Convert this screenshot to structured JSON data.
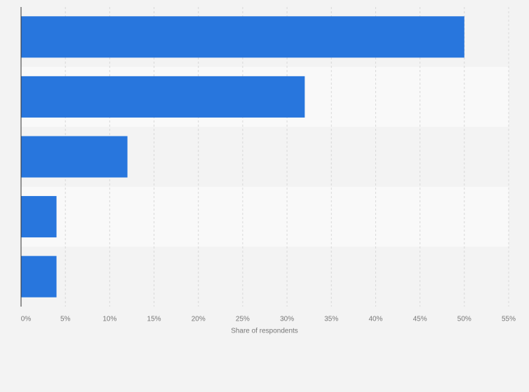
{
  "chart_data": {
    "type": "barh",
    "categories": [
      null,
      null,
      null,
      null,
      null
    ],
    "values": [
      50,
      32,
      12,
      4,
      4
    ],
    "color": "#2876dd",
    "x_label": "Share of respondents",
    "xlim": [
      0,
      55
    ],
    "xticks": [
      {
        "value": 0,
        "label": "0%"
      },
      {
        "value": 5,
        "label": "5%"
      },
      {
        "value": 10,
        "label": "10%"
      },
      {
        "value": 15,
        "label": "15%"
      },
      {
        "value": 20,
        "label": "20%"
      },
      {
        "value": 25,
        "label": "25%"
      },
      {
        "value": 30,
        "label": "30%"
      },
      {
        "value": 35,
        "label": "35%"
      },
      {
        "value": 40,
        "label": "40%"
      },
      {
        "value": 45,
        "label": "45%"
      },
      {
        "value": 50,
        "label": "50%"
      },
      {
        "value": 55,
        "label": "55%"
      }
    ],
    "grid": true
  }
}
